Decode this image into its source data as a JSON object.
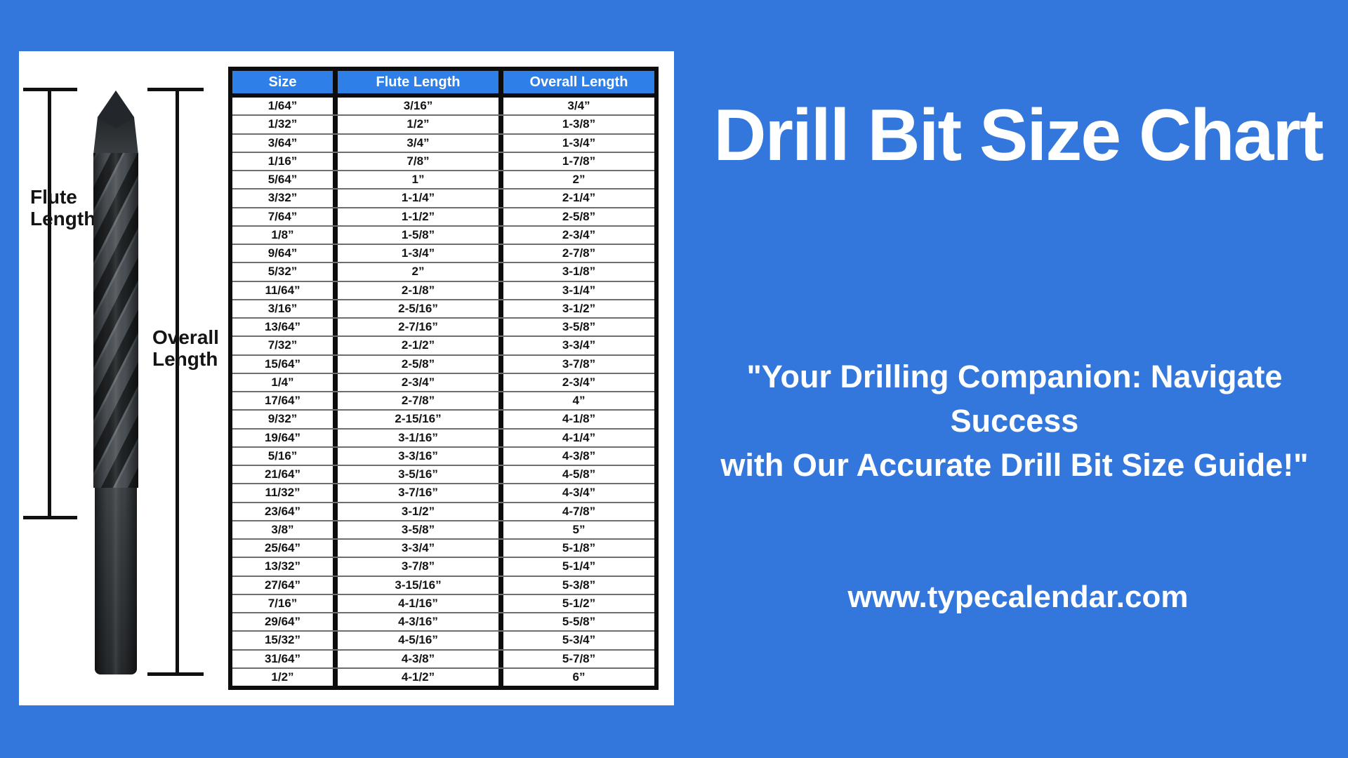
{
  "page": {
    "background_color": "#3377dd",
    "title": "Drill Bit Size Chart",
    "tagline_line1": "\"Your Drilling Companion: Navigate Success",
    "tagline_line2": "with Our Accurate Drill Bit Size Guide!\"",
    "website": "www.typecalendar.com"
  },
  "diagram": {
    "flute_label_line1": "Flute",
    "flute_label_line2": "Length",
    "overall_label_line1": "Overall",
    "overall_label_line2": "Length"
  },
  "table_style": {
    "header_bg": "#2e7fe8",
    "border_color": "#0d0d0d"
  },
  "chart_data": {
    "type": "table",
    "title": "Drill Bit Size Chart",
    "columns": [
      "Size",
      "Flute Length",
      "Overall Length"
    ],
    "rows": [
      [
        "1/64”",
        "3/16”",
        "3/4”"
      ],
      [
        "1/32”",
        "1/2”",
        "1-3/8”"
      ],
      [
        "3/64”",
        "3/4”",
        "1-3/4”"
      ],
      [
        "1/16”",
        "7/8”",
        "1-7/8”"
      ],
      [
        "5/64”",
        "1”",
        "2”"
      ],
      [
        "3/32”",
        "1-1/4”",
        "2-1/4”"
      ],
      [
        "7/64”",
        "1-1/2”",
        "2-5/8”"
      ],
      [
        "1/8”",
        "1-5/8”",
        "2-3/4”"
      ],
      [
        "9/64”",
        "1-3/4”",
        "2-7/8”"
      ],
      [
        "5/32”",
        "2”",
        "3-1/8”"
      ],
      [
        "11/64”",
        "2-1/8”",
        "3-1/4”"
      ],
      [
        "3/16”",
        "2-5/16”",
        "3-1/2”"
      ],
      [
        "13/64”",
        "2-7/16”",
        "3-5/8”"
      ],
      [
        "7/32”",
        "2-1/2”",
        "3-3/4”"
      ],
      [
        "15/64”",
        "2-5/8”",
        "3-7/8”"
      ],
      [
        "1/4”",
        "2-3/4”",
        "2-3/4”"
      ],
      [
        "17/64”",
        "2-7/8”",
        "4”"
      ],
      [
        "9/32”",
        "2-15/16”",
        "4-1/8”"
      ],
      [
        "19/64”",
        "3-1/16”",
        "4-1/4”"
      ],
      [
        "5/16”",
        "3-3/16”",
        "4-3/8”"
      ],
      [
        "21/64”",
        "3-5/16”",
        "4-5/8”"
      ],
      [
        "11/32”",
        "3-7/16”",
        "4-3/4”"
      ],
      [
        "23/64”",
        "3-1/2”",
        "4-7/8”"
      ],
      [
        "3/8”",
        "3-5/8”",
        "5”"
      ],
      [
        "25/64”",
        "3-3/4”",
        "5-1/8”"
      ],
      [
        "13/32”",
        "3-7/8”",
        "5-1/4”"
      ],
      [
        "27/64”",
        "3-15/16”",
        "5-3/8”"
      ],
      [
        "7/16”",
        "4-1/16”",
        "5-1/2”"
      ],
      [
        "29/64”",
        "4-3/16”",
        "5-5/8”"
      ],
      [
        "15/32”",
        "4-5/16”",
        "5-3/4”"
      ],
      [
        "31/64”",
        "4-3/8”",
        "5-7/8”"
      ],
      [
        "1/2”",
        "4-1/2”",
        "6”"
      ]
    ]
  }
}
